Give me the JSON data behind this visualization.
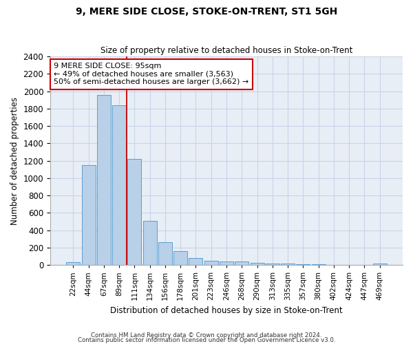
{
  "title1": "9, MERE SIDE CLOSE, STOKE-ON-TRENT, ST1 5GH",
  "title2": "Size of property relative to detached houses in Stoke-on-Trent",
  "xlabel": "Distribution of detached houses by size in Stoke-on-Trent",
  "ylabel": "Number of detached properties",
  "bar_color": "#b8d0e8",
  "bar_edge_color": "#5a9fd4",
  "categories": [
    "22sqm",
    "44sqm",
    "67sqm",
    "89sqm",
    "111sqm",
    "134sqm",
    "156sqm",
    "178sqm",
    "201sqm",
    "223sqm",
    "246sqm",
    "268sqm",
    "290sqm",
    "313sqm",
    "335sqm",
    "357sqm",
    "380sqm",
    "402sqm",
    "424sqm",
    "447sqm",
    "469sqm"
  ],
  "values": [
    28,
    1150,
    1960,
    1840,
    1220,
    510,
    265,
    155,
    80,
    50,
    42,
    38,
    22,
    18,
    12,
    8,
    5,
    3,
    2,
    1,
    18
  ],
  "ylim": [
    0,
    2400
  ],
  "yticks": [
    0,
    200,
    400,
    600,
    800,
    1000,
    1200,
    1400,
    1600,
    1800,
    2000,
    2200,
    2400
  ],
  "vline_x": 3.5,
  "annotation_line1": "9 MERE SIDE CLOSE: 95sqm",
  "annotation_line2": "← 49% of detached houses are smaller (3,563)",
  "annotation_line3": "50% of semi-detached houses are larger (3,662) →",
  "annotation_box_color": "#cc0000",
  "footer1": "Contains HM Land Registry data © Crown copyright and database right 2024.",
  "footer2": "Contains public sector information licensed under the Open Government Licence v3.0.",
  "grid_color": "#c8d4e8",
  "background_color": "#e8eef6"
}
